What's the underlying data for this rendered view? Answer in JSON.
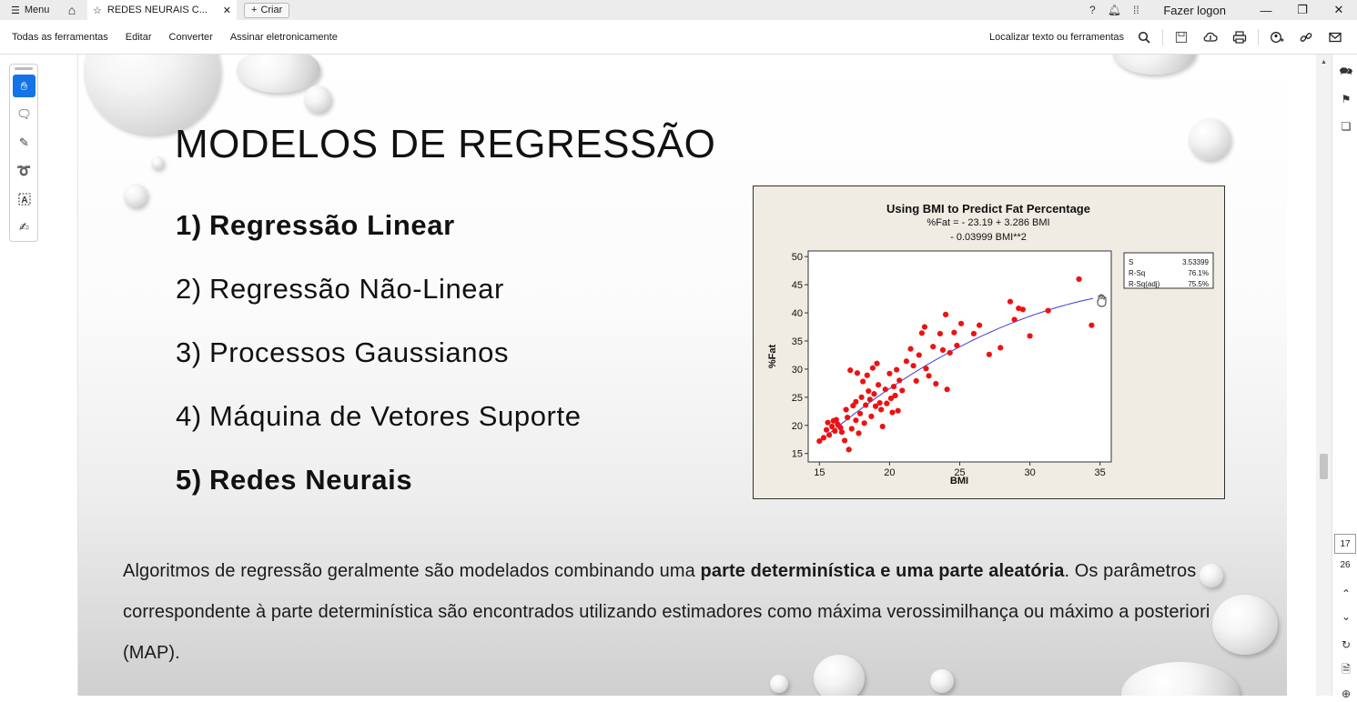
{
  "titlebar": {
    "menu_label": "Menu",
    "tab_title": "REDES NEURAIS C...",
    "create_label": "Criar",
    "logon_label": "Fazer logon"
  },
  "toolbar": {
    "items": [
      "Todas as ferramentas",
      "Editar",
      "Converter",
      "Assinar eletronicamente"
    ],
    "find_label": "Localizar texto ou ferramentas"
  },
  "slide": {
    "title": "MODELOS DE REGRESSÃO",
    "list": [
      {
        "num": "1)",
        "label": "Regressão Linear",
        "bold": true
      },
      {
        "num": "2)",
        "label": "Regressão Não-Linear",
        "bold": false
      },
      {
        "num": "3)",
        "label": "Processos Gaussianos",
        "bold": false
      },
      {
        "num": "4)",
        "label": "Máquina de Vetores Suporte",
        "bold": false
      },
      {
        "num": "5)",
        "label": "Redes Neurais",
        "bold": true
      }
    ],
    "paragraph": {
      "part1": "Algoritmos de regressão geralmente são modelados combinando uma ",
      "bold": "parte determinística e uma parte aleatória",
      "part2": ". Os parâmetros correspondente à parte determinística são encontrados utilizando estimadores como máxima verossimilhança ou máximo a posteriori (MAP)."
    }
  },
  "chart_data": {
    "type": "scatter",
    "title": "Using BMI to Predict Fat Percentage",
    "equation_line1": "%Fat =  - 23.19 + 3.286 BMI",
    "equation_line2": "- 0.03999 BMI**2",
    "xlabel": "BMI",
    "ylabel": "%Fat",
    "xlim": [
      14.2,
      35.8
    ],
    "ylim": [
      13.5,
      51
    ],
    "xticks": [
      15,
      20,
      25,
      30,
      35
    ],
    "yticks": [
      15,
      20,
      25,
      30,
      35,
      40,
      45,
      50
    ],
    "stats": [
      {
        "label": "S",
        "value": "3.53399"
      },
      {
        "label": "R-Sq",
        "value": "76.1%"
      },
      {
        "label": "R-Sq(adj)",
        "value": "75.5%"
      }
    ],
    "fit": {
      "intercept": -23.19,
      "b1": 3.286,
      "b2": -0.03999,
      "x_range": [
        15.5,
        34.5
      ],
      "color": "#3d3dd8"
    },
    "point_color": "#ee1111",
    "points": [
      [
        15.0,
        17.2
      ],
      [
        15.3,
        17.8
      ],
      [
        15.5,
        19.2
      ],
      [
        15.6,
        20.5
      ],
      [
        15.7,
        18.3
      ],
      [
        15.9,
        19.8
      ],
      [
        16.0,
        20.8
      ],
      [
        16.1,
        19.0
      ],
      [
        16.2,
        21.0
      ],
      [
        16.3,
        20.2
      ],
      [
        16.5,
        19.6
      ],
      [
        16.6,
        18.8
      ],
      [
        16.8,
        17.3
      ],
      [
        16.9,
        22.8
      ],
      [
        17.0,
        21.4
      ],
      [
        17.1,
        15.7
      ],
      [
        17.2,
        29.8
      ],
      [
        17.3,
        19.4
      ],
      [
        17.4,
        23.5
      ],
      [
        17.6,
        24.2
      ],
      [
        17.6,
        20.9
      ],
      [
        17.7,
        29.3
      ],
      [
        17.8,
        18.6
      ],
      [
        17.9,
        22.1
      ],
      [
        18.0,
        25.0
      ],
      [
        18.1,
        27.8
      ],
      [
        18.2,
        20.4
      ],
      [
        18.3,
        23.6
      ],
      [
        18.4,
        28.9
      ],
      [
        18.5,
        26.1
      ],
      [
        18.6,
        24.6
      ],
      [
        18.7,
        21.6
      ],
      [
        18.8,
        30.2
      ],
      [
        18.9,
        25.6
      ],
      [
        19.0,
        23.4
      ],
      [
        19.1,
        31.0
      ],
      [
        19.2,
        27.2
      ],
      [
        19.3,
        24.0
      ],
      [
        19.4,
        22.8
      ],
      [
        19.5,
        19.8
      ],
      [
        19.7,
        26.4
      ],
      [
        19.8,
        23.9
      ],
      [
        20.0,
        29.2
      ],
      [
        20.1,
        24.8
      ],
      [
        20.2,
        22.3
      ],
      [
        20.3,
        26.9
      ],
      [
        20.4,
        25.3
      ],
      [
        20.5,
        29.9
      ],
      [
        20.6,
        22.6
      ],
      [
        20.7,
        28.0
      ],
      [
        20.9,
        26.2
      ],
      [
        21.2,
        31.4
      ],
      [
        21.5,
        33.6
      ],
      [
        21.7,
        30.6
      ],
      [
        21.9,
        27.9
      ],
      [
        22.1,
        32.5
      ],
      [
        22.3,
        36.4
      ],
      [
        22.5,
        37.5
      ],
      [
        22.6,
        30.1
      ],
      [
        22.8,
        28.8
      ],
      [
        23.1,
        34.0
      ],
      [
        23.3,
        27.4
      ],
      [
        23.6,
        36.3
      ],
      [
        23.8,
        33.4
      ],
      [
        24.0,
        39.7
      ],
      [
        24.1,
        26.4
      ],
      [
        24.3,
        32.9
      ],
      [
        24.6,
        36.5
      ],
      [
        24.8,
        34.2
      ],
      [
        25.1,
        38.1
      ],
      [
        26.0,
        36.3
      ],
      [
        26.4,
        37.8
      ],
      [
        27.1,
        32.6
      ],
      [
        27.9,
        33.8
      ],
      [
        28.6,
        42.0
      ],
      [
        28.9,
        38.8
      ],
      [
        29.2,
        40.8
      ],
      [
        29.5,
        40.6
      ],
      [
        30.0,
        35.9
      ],
      [
        31.3,
        40.4
      ],
      [
        33.5,
        46.0
      ],
      [
        34.4,
        37.8
      ]
    ]
  }
}
